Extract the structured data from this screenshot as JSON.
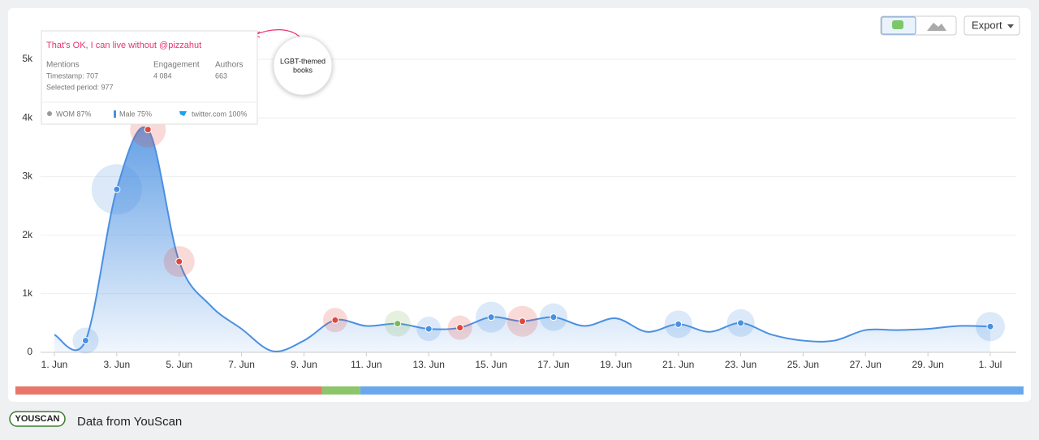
{
  "chart_data": {
    "type": "area",
    "categories": [
      "1. Jun",
      null,
      "3. Jun",
      null,
      "5. Jun",
      null,
      "7. Jun",
      null,
      "9. Jun",
      null,
      "11. Jun",
      null,
      "13. Jun",
      null,
      "15. Jun",
      null,
      "17. Jun",
      null,
      "19. Jun",
      null,
      "21. Jun",
      null,
      "23. Jun",
      null,
      "25. Jun",
      null,
      "27. Jun",
      null,
      "29. Jun",
      null,
      "1. Jul"
    ],
    "series": [
      {
        "color": "#4a90e2",
        "values": [
          300,
          200,
          2780,
          3800,
          1550,
          800,
          400,
          20,
          200,
          550,
          450,
          490,
          400,
          420,
          600,
          530,
          600,
          450,
          580,
          350,
          480,
          350,
          500,
          300,
          200,
          200,
          380,
          380,
          400,
          450,
          440
        ],
        "sizes": [
          null,
          16,
          31,
          22,
          19,
          null,
          null,
          null,
          null,
          15,
          null,
          16,
          15,
          15,
          19,
          19,
          17,
          null,
          null,
          null,
          17,
          null,
          17,
          null,
          null,
          null,
          null,
          null,
          null,
          null,
          18
        ],
        "marker_colors": [
          null,
          "#4a90e2",
          "#4a90e2",
          "#e0463a",
          "#e0463a",
          null,
          null,
          null,
          null,
          "#e0463a",
          null,
          "#7cb85a",
          "#4a90e2",
          "#e0463a",
          "#4a90e2",
          "#e0463a",
          "#4a90e2",
          null,
          null,
          null,
          "#4a90e2",
          null,
          "#4a90e2",
          null,
          null,
          null,
          null,
          null,
          null,
          null,
          "#4a90e2"
        ]
      }
    ],
    "ylim": [
      0,
      5000
    ],
    "yticks": [
      0,
      {
        "value": 1000,
        "label": "1k"
      },
      {
        "value": 2000,
        "label": "2k"
      },
      {
        "value": 3000,
        "label": "3k"
      },
      {
        "value": 4000,
        "label": "4k"
      },
      {
        "value": 5000,
        "label": "5k"
      }
    ],
    "grid": true,
    "sentiment_bar": {
      "values": [
        30.4,
        3.8,
        65.8
      ],
      "colors": [
        "#e8776a",
        "#8cc56a",
        "#6aa8ee"
      ]
    }
  },
  "tooltip": {
    "title": "That's OK, I can live without @pizzahut",
    "labels": [
      "Mentions",
      "Engagement",
      "Authors"
    ],
    "timestamp": "Timestamp: 707",
    "period": "Selected period: 977",
    "engagement": "4 084",
    "authors": "663",
    "wom": "WOM 87%",
    "male": "Male 75%",
    "source": "twitter.com 100%"
  },
  "annotation": {
    "lines": [
      "LGBT-themed",
      "books"
    ]
  },
  "toolbar": {
    "export": "Export"
  },
  "footer": {
    "logo": "YOUSCAN",
    "text": "Data from YouScan"
  }
}
